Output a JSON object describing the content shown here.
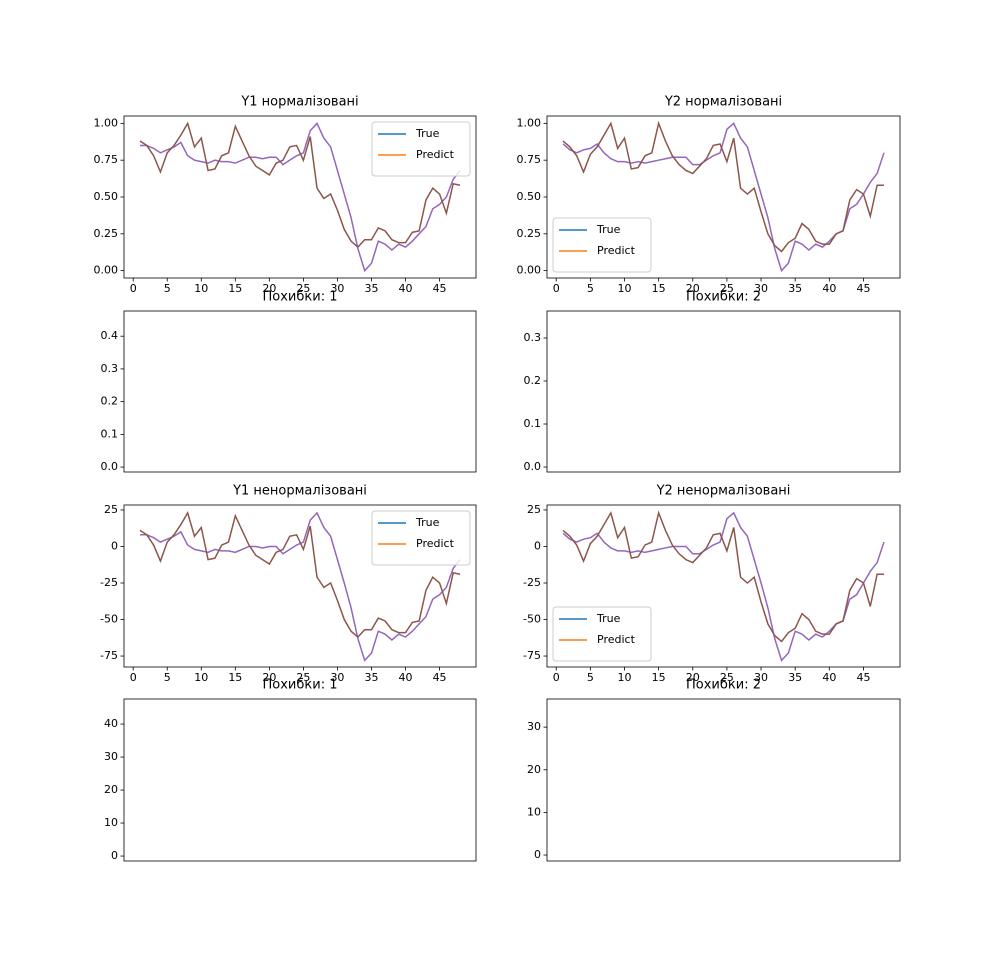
{
  "chart_data": [
    {
      "type": "line",
      "title": "Y1 нормалізовані",
      "legend": "upper right",
      "x": [
        1,
        2,
        3,
        4,
        5,
        6,
        7,
        8,
        9,
        10,
        11,
        12,
        13,
        14,
        15,
        16,
        17,
        18,
        19,
        20,
        21,
        22,
        23,
        24,
        25,
        26,
        27,
        28,
        29,
        30,
        31,
        32,
        33,
        34,
        35,
        36,
        37,
        38,
        39,
        40,
        41,
        42,
        43,
        44,
        45,
        46,
        47,
        48
      ],
      "xlim": [
        -1.35,
        50.35
      ],
      "xticks": [
        0,
        5,
        10,
        15,
        20,
        25,
        30,
        35,
        40,
        45
      ],
      "ylim": [
        -0.05,
        1.05
      ],
      "yticks": [
        {
          "value": 0,
          "label": "0.00"
        },
        {
          "value": 0.25,
          "label": "0.25"
        },
        {
          "value": 0.5,
          "label": "0.50"
        },
        {
          "value": 0.75,
          "label": "0.75"
        },
        {
          "value": 1,
          "label": "1.00"
        }
      ],
      "series": [
        {
          "name": "True",
          "color": "#9467bd",
          "legend_color": "#1f77b4",
          "values": [
            0.85,
            0.85,
            0.83,
            0.8,
            0.82,
            0.84,
            0.87,
            0.78,
            0.75,
            0.74,
            0.73,
            0.75,
            0.74,
            0.74,
            0.73,
            0.75,
            0.77,
            0.77,
            0.76,
            0.77,
            0.77,
            0.72,
            0.75,
            0.78,
            0.8,
            0.95,
            1.0,
            0.9,
            0.84,
            0.68,
            0.52,
            0.36,
            0.15,
            0,
            0.05,
            0.2,
            0.18,
            0.14,
            0.18,
            0.16,
            0.2,
            0.25,
            0.3,
            0.42,
            0.45,
            0.5,
            0.62,
            0.68
          ]
        },
        {
          "name": "Predict",
          "color": "#8c564b",
          "legend_color": "#ff7f0e",
          "values": [
            0.88,
            0.85,
            0.78,
            0.67,
            0.8,
            0.85,
            0.92,
            1.0,
            0.84,
            0.9,
            0.68,
            0.69,
            0.78,
            0.8,
            0.98,
            0.88,
            0.78,
            0.71,
            0.68,
            0.65,
            0.73,
            0.75,
            0.84,
            0.85,
            0.75,
            0.91,
            0.56,
            0.49,
            0.52,
            0.41,
            0.28,
            0.2,
            0.16,
            0.21,
            0.21,
            0.29,
            0.27,
            0.21,
            0.19,
            0.19,
            0.26,
            0.27,
            0.48,
            0.56,
            0.52,
            0.39,
            0.59,
            0.58
          ]
        }
      ]
    },
    {
      "type": "line",
      "title": "Y2 нормалізовані",
      "legend": "lower left",
      "x": [
        1,
        2,
        3,
        4,
        5,
        6,
        7,
        8,
        9,
        10,
        11,
        12,
        13,
        14,
        15,
        16,
        17,
        18,
        19,
        20,
        21,
        22,
        23,
        24,
        25,
        26,
        27,
        28,
        29,
        30,
        31,
        32,
        33,
        34,
        35,
        36,
        37,
        38,
        39,
        40,
        41,
        42,
        43,
        44,
        45,
        46,
        47,
        48
      ],
      "xlim": [
        -1.35,
        50.35
      ],
      "xticks": [
        0,
        5,
        10,
        15,
        20,
        25,
        30,
        35,
        40,
        45
      ],
      "ylim": [
        -0.05,
        1.05
      ],
      "yticks": [
        {
          "value": 0,
          "label": "0.00"
        },
        {
          "value": 0.25,
          "label": "0.25"
        },
        {
          "value": 0.5,
          "label": "0.50"
        },
        {
          "value": 0.75,
          "label": "0.75"
        },
        {
          "value": 1,
          "label": "1.00"
        }
      ],
      "series": [
        {
          "name": "True",
          "color": "#9467bd",
          "legend_color": "#1f77b4",
          "values": [
            0.86,
            0.82,
            0.8,
            0.82,
            0.83,
            0.86,
            0.8,
            0.76,
            0.74,
            0.74,
            0.73,
            0.74,
            0.73,
            0.74,
            0.75,
            0.76,
            0.77,
            0.77,
            0.77,
            0.72,
            0.72,
            0.75,
            0.78,
            0.8,
            0.96,
            1.0,
            0.9,
            0.84,
            0.68,
            0.52,
            0.36,
            0.15,
            0,
            0.05,
            0.2,
            0.18,
            0.14,
            0.18,
            0.16,
            0.2,
            0.25,
            0.27,
            0.42,
            0.45,
            0.52,
            0.6,
            0.66,
            0.8
          ]
        },
        {
          "name": "Predict",
          "color": "#8c564b",
          "legend_color": "#ff7f0e",
          "values": [
            0.88,
            0.84,
            0.78,
            0.67,
            0.79,
            0.84,
            0.92,
            1.0,
            0.83,
            0.9,
            0.69,
            0.7,
            0.78,
            0.8,
            1.0,
            0.88,
            0.78,
            0.72,
            0.68,
            0.66,
            0.71,
            0.76,
            0.85,
            0.86,
            0.74,
            0.9,
            0.56,
            0.52,
            0.56,
            0.4,
            0.25,
            0.17,
            0.13,
            0.19,
            0.22,
            0.32,
            0.28,
            0.2,
            0.18,
            0.18,
            0.25,
            0.27,
            0.48,
            0.55,
            0.52,
            0.37,
            0.58,
            0.58
          ]
        }
      ]
    },
    {
      "type": "line",
      "title": "Похибки: 1",
      "ylim": [
        -0.015,
        0.477
      ],
      "yticks": [
        {
          "value": 0,
          "label": "0.0"
        },
        0.1,
        0.2,
        0.3,
        0.4
      ]
    },
    {
      "type": "line",
      "title": "Похибки: 2",
      "ylim": [
        -0.0116,
        0.3628
      ],
      "yticks": [
        {
          "value": 0,
          "label": "0.0"
        },
        0.1,
        0.2,
        0.3
      ]
    },
    {
      "type": "line",
      "title": "Y1 ненормалізовані",
      "legend": "upper right",
      "x": [
        1,
        2,
        3,
        4,
        5,
        6,
        7,
        8,
        9,
        10,
        11,
        12,
        13,
        14,
        15,
        16,
        17,
        18,
        19,
        20,
        21,
        22,
        23,
        24,
        25,
        26,
        27,
        28,
        29,
        30,
        31,
        32,
        33,
        34,
        35,
        36,
        37,
        38,
        39,
        40,
        41,
        42,
        43,
        44,
        45,
        46,
        47,
        48
      ],
      "xlim": [
        -1.35,
        50.35
      ],
      "xticks": [
        0,
        5,
        10,
        15,
        20,
        25,
        30,
        35,
        40,
        45
      ],
      "ylim": [
        -82.5,
        28.4
      ],
      "yticks": [
        -75,
        -50,
        -25,
        0,
        25
      ],
      "series": [
        {
          "name": "True",
          "color": "#9467bd",
          "legend_color": "#1f77b4",
          "values": [
            8,
            8,
            6,
            3,
            5,
            7,
            10,
            1,
            -2,
            -3,
            -4,
            -2,
            -3,
            -3,
            -4,
            -2,
            0,
            0,
            -1,
            0,
            0,
            -5,
            -2,
            1,
            3,
            18,
            23,
            13,
            7,
            -9,
            -25,
            -42,
            -63,
            -78,
            -73,
            -58,
            -60,
            -64,
            -60,
            -62,
            -58,
            -53,
            -48,
            -36,
            -33,
            -28,
            -15,
            -9
          ]
        },
        {
          "name": "Predict",
          "color": "#8c564b",
          "legend_color": "#ff7f0e",
          "values": [
            11,
            8,
            1,
            -10,
            3,
            8,
            15,
            23,
            7,
            13,
            -9,
            -8,
            1,
            3,
            21,
            11,
            1,
            -6,
            -9,
            -12,
            -4,
            -2,
            7,
            8,
            -2,
            14,
            -21,
            -28,
            -25,
            -37,
            -50,
            -58,
            -62,
            -57,
            -57,
            -49,
            -51,
            -57,
            -59,
            -59,
            -52,
            -51,
            -30,
            -21,
            -25,
            -39,
            -18,
            -19
          ]
        }
      ]
    },
    {
      "type": "line",
      "title": "Y2 ненормалізовані",
      "legend": "lower left",
      "x": [
        1,
        2,
        3,
        4,
        5,
        6,
        7,
        8,
        9,
        10,
        11,
        12,
        13,
        14,
        15,
        16,
        17,
        18,
        19,
        20,
        21,
        22,
        23,
        24,
        25,
        26,
        27,
        28,
        29,
        30,
        31,
        32,
        33,
        34,
        35,
        36,
        37,
        38,
        39,
        40,
        41,
        42,
        43,
        44,
        45,
        46,
        47,
        48
      ],
      "xlim": [
        -1.35,
        50.35
      ],
      "xticks": [
        0,
        5,
        10,
        15,
        20,
        25,
        30,
        35,
        40,
        45
      ],
      "ylim": [
        -82.5,
        28.4
      ],
      "yticks": [
        -75,
        -50,
        -25,
        0,
        25
      ],
      "series": [
        {
          "name": "True",
          "color": "#9467bd",
          "legend_color": "#1f77b4",
          "values": [
            9,
            5,
            3,
            5,
            6,
            9,
            3,
            -1,
            -3,
            -3,
            -4,
            -3,
            -4,
            -3,
            -2,
            -1,
            0,
            0,
            0,
            -5,
            -5,
            -2,
            1,
            3,
            19,
            23,
            13,
            7,
            -9,
            -25,
            -42,
            -63,
            -78,
            -73,
            -58,
            -60,
            -64,
            -60,
            -62,
            -58,
            -53,
            -51,
            -36,
            -33,
            -25,
            -17,
            -11,
            3
          ]
        },
        {
          "name": "Predict",
          "color": "#8c564b",
          "legend_color": "#ff7f0e",
          "values": [
            11,
            7,
            1,
            -10,
            2,
            7,
            15,
            23,
            6,
            13,
            -8,
            -7,
            1,
            3,
            23,
            11,
            1,
            -5,
            -9,
            -11,
            -6,
            -1,
            8,
            9,
            -3,
            13,
            -21,
            -25,
            -21,
            -38,
            -53,
            -61,
            -65,
            -59,
            -56,
            -46,
            -50,
            -58,
            -60,
            -60,
            -53,
            -51,
            -30,
            -22,
            -25,
            -41,
            -19,
            -19
          ]
        }
      ]
    },
    {
      "type": "line",
      "title": "Похибки: 1",
      "ylim": [
        -1.5,
        47.6
      ],
      "yticks": [
        0,
        10,
        20,
        30,
        40
      ]
    },
    {
      "type": "line",
      "title": "Похибки: 2",
      "ylim": [
        -1.4,
        36.6
      ],
      "yticks": [
        0,
        10,
        20,
        30
      ]
    }
  ]
}
